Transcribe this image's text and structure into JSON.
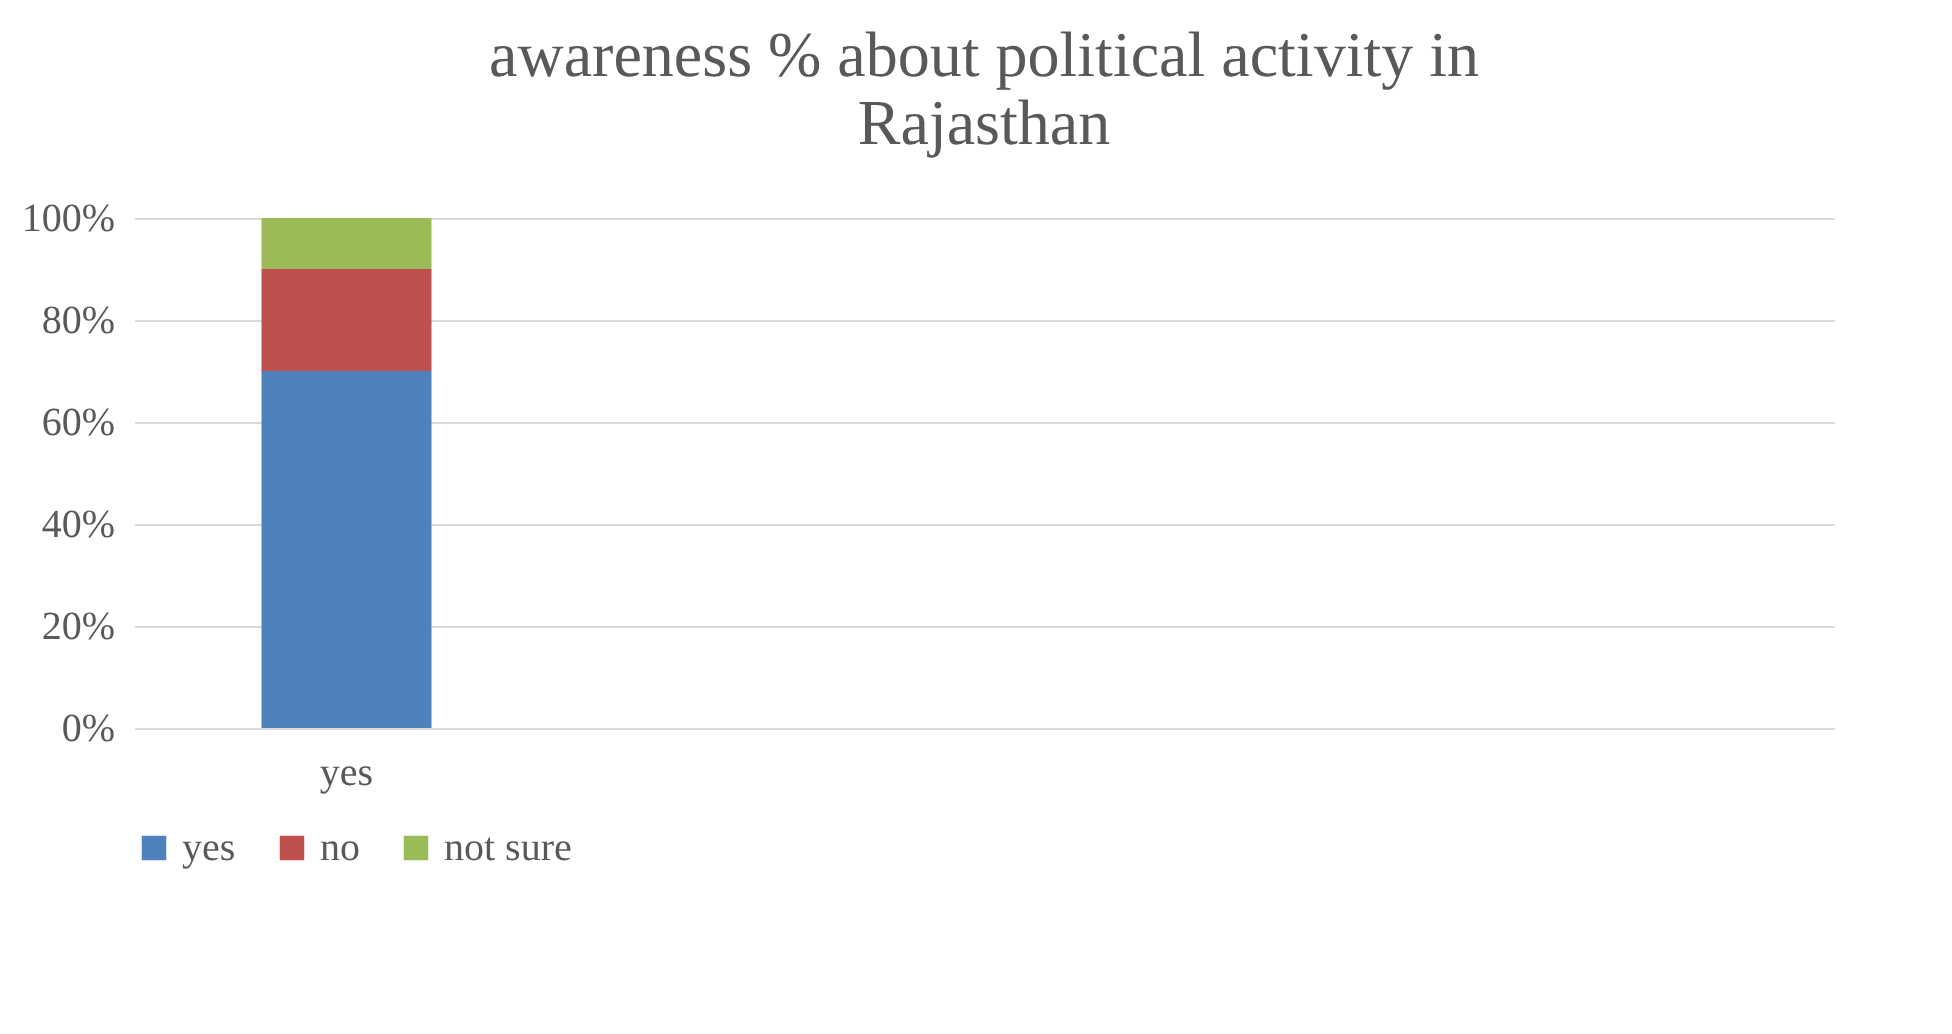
{
  "chart_data": {
    "type": "bar",
    "stacked": true,
    "title": "awareness % about political activity in Rajasthan",
    "categories": [
      "yes",
      null,
      null,
      null
    ],
    "series": [
      {
        "name": "yes",
        "color": "#4f81bd",
        "values": [
          70,
          null,
          null,
          null
        ]
      },
      {
        "name": "no",
        "color": "#c0504d",
        "values": [
          20,
          null,
          null,
          null
        ]
      },
      {
        "name": "not sure",
        "color": "#9bbb59",
        "values": [
          10,
          null,
          null,
          null
        ]
      }
    ],
    "ylim": [
      0,
      100
    ],
    "yticks": [
      {
        "value": 0,
        "label": "0%"
      },
      {
        "value": 20,
        "label": "20%"
      },
      {
        "value": 40,
        "label": "40%"
      },
      {
        "value": 60,
        "label": "60%"
      },
      {
        "value": 80,
        "label": "80%"
      },
      {
        "value": 100,
        "label": "100%"
      }
    ],
    "grid": "y",
    "legend": "bottom"
  }
}
